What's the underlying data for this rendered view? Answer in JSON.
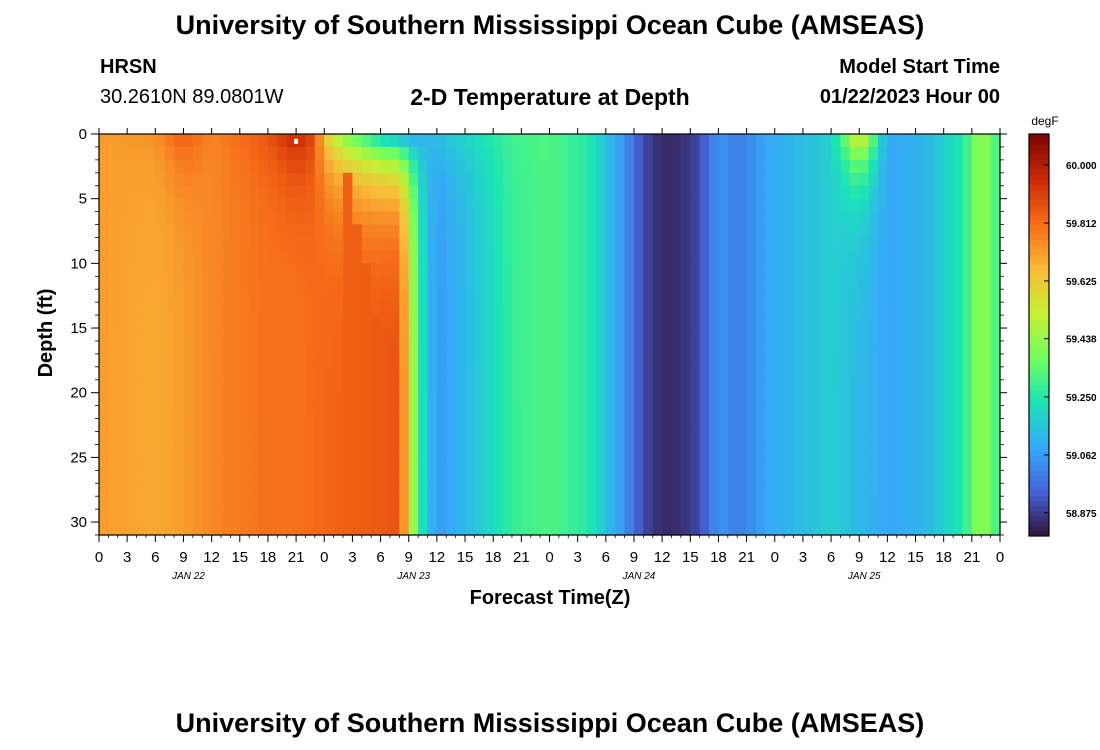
{
  "header": {
    "title": "University of Southern Mississippi Ocean Cube (AMSEAS)",
    "station": "HRSN",
    "coordinates": "30.2610N  89.0801W",
    "subtitle": "2-D Temperature at Depth",
    "model_start_label": "Model Start Time",
    "model_start_value": "01/22/2023 Hour 00"
  },
  "footer": {
    "title": "University of Southern Mississippi Ocean Cube (AMSEAS)"
  },
  "chart_data": {
    "type": "heatmap",
    "xlabel": "Forecast Time(Z)",
    "ylabel": "Depth (ft)",
    "x_tick_labels": [
      "0",
      "3",
      "6",
      "9",
      "12",
      "15",
      "18",
      "21",
      "0",
      "3",
      "6",
      "9",
      "12",
      "15",
      "18",
      "21",
      "0",
      "3",
      "6",
      "9",
      "12",
      "15",
      "18",
      "21",
      "0",
      "3",
      "6",
      "9",
      "12",
      "15",
      "18",
      "21",
      "0"
    ],
    "date_labels": [
      {
        "label": "JAN 22",
        "hour": 9
      },
      {
        "label": "JAN 23",
        "hour": 33
      },
      {
        "label": "JAN 24",
        "hour": 57
      },
      {
        "label": "JAN 25",
        "hour": 81
      }
    ],
    "x_range_hours": [
      0,
      96
    ],
    "y_ticks": [
      "0",
      "5",
      "10",
      "15",
      "20",
      "25",
      "30"
    ],
    "y_range": [
      0,
      31
    ],
    "colorbar": {
      "unit": "degF",
      "tick_labels": [
        "60.000",
        "59.812",
        "59.625",
        "59.438",
        "59.250",
        "59.062",
        "58.875"
      ],
      "range": [
        58.8,
        60.1
      ],
      "colors": [
        "#30123b",
        "#4662d7",
        "#36aaf9",
        "#1ae4b6",
        "#72fe5e",
        "#c8ef34",
        "#faba39",
        "#f66b19",
        "#cb2a04",
        "#7a0403"
      ]
    },
    "surface_profile": {
      "hours": [
        0,
        6,
        9,
        12,
        18,
        21,
        23,
        24,
        26,
        28,
        30,
        33,
        36,
        40,
        44,
        48,
        52,
        54,
        56,
        58,
        60,
        62,
        64,
        66,
        68,
        70,
        72,
        74,
        78,
        80,
        81,
        82,
        84,
        88,
        92,
        94,
        96
      ],
      "temps": [
        59.72,
        59.74,
        59.85,
        59.76,
        59.86,
        59.98,
        59.88,
        59.62,
        59.4,
        59.28,
        59.15,
        59.07,
        59.14,
        59.22,
        59.3,
        59.32,
        59.26,
        59.15,
        59.04,
        58.9,
        58.84,
        58.85,
        58.9,
        59.05,
        59.0,
        59.05,
        59.1,
        59.12,
        59.18,
        59.45,
        59.62,
        59.45,
        59.08,
        59.12,
        59.25,
        59.45,
        59.28
      ]
    },
    "bottom_profile": {
      "hours": [
        0,
        6,
        9,
        12,
        18,
        21,
        24,
        30,
        32,
        33,
        34,
        35,
        36,
        40,
        44,
        48,
        52,
        54,
        56,
        58,
        60,
        62,
        64,
        66,
        68,
        70,
        72,
        74,
        78,
        84,
        88,
        92,
        94,
        96
      ],
      "temps": [
        59.72,
        59.7,
        59.72,
        59.76,
        59.8,
        59.8,
        59.82,
        59.85,
        59.86,
        59.6,
        59.3,
        59.15,
        59.05,
        59.15,
        59.28,
        59.32,
        59.26,
        59.15,
        59.04,
        58.9,
        58.84,
        58.85,
        58.9,
        59.05,
        59.0,
        59.05,
        59.1,
        59.12,
        59.18,
        59.08,
        59.12,
        59.25,
        59.45,
        59.28
      ]
    },
    "front_depth_hours": {
      "depths": [
        0,
        5,
        10,
        14,
        15,
        18,
        22,
        31
      ],
      "hours": [
        26,
        27,
        28.5,
        29.5,
        31,
        32.5,
        33,
        33.5
      ]
    },
    "marker": {
      "hour": 21,
      "depth": 0.3
    }
  }
}
